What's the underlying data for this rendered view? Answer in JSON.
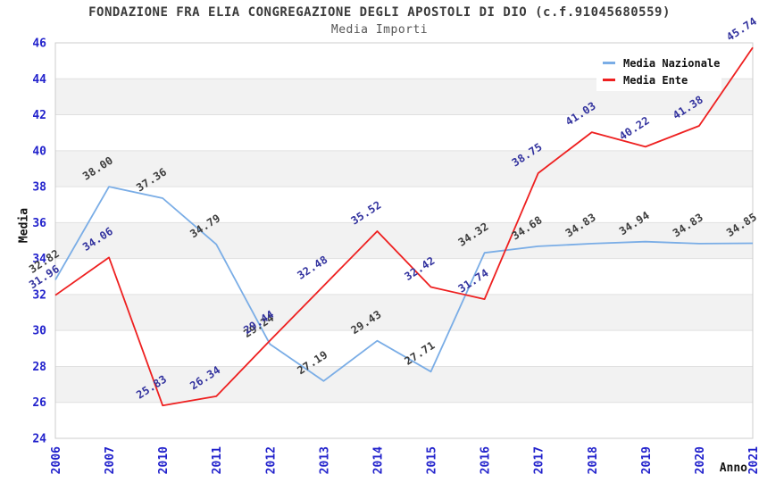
{
  "chart_data": {
    "type": "line",
    "title": "FONDAZIONE FRA ELIA CONGREGAZIONE DEGLI APOSTOLI DI DIO (c.f.91045680559)",
    "subtitle": "Media Importi",
    "xlabel": "Anno",
    "ylabel": "Media",
    "categories": [
      "2006",
      "2007",
      "2010",
      "2011",
      "2012",
      "2013",
      "2014",
      "2015",
      "2016",
      "2017",
      "2018",
      "2019",
      "2020",
      "2021"
    ],
    "series": [
      {
        "name": "Media Nazionale",
        "color": "#7aade6",
        "label_color": "#3c3c3c",
        "values": [
          32.82,
          38.0,
          37.36,
          34.79,
          29.24,
          27.19,
          29.43,
          27.71,
          34.32,
          34.68,
          34.83,
          34.94,
          34.83,
          34.85
        ]
      },
      {
        "name": "Media Ente",
        "color": "#ee2020",
        "label_color": "#32329e",
        "values": [
          31.96,
          34.06,
          25.83,
          26.34,
          29.44,
          32.48,
          35.52,
          32.42,
          31.74,
          38.75,
          41.03,
          40.22,
          41.38,
          45.74
        ]
      }
    ],
    "ylim": [
      24,
      46
    ],
    "yticks": [
      24,
      26,
      28,
      30,
      32,
      34,
      36,
      38,
      40,
      42,
      44,
      46
    ],
    "grid": true,
    "legend_position": "top-right",
    "value_label_format": "2-decimals",
    "colors": {
      "tick_label": "#2222cc",
      "axis_title": "#111111",
      "title": "#3a3a3a",
      "subtitle": "#555555",
      "band": "#f2f2f2",
      "gridline": "#e0e0e0",
      "border": "#cccccc",
      "legend_text": "#111111",
      "legend_bg": "#ffffff"
    }
  }
}
